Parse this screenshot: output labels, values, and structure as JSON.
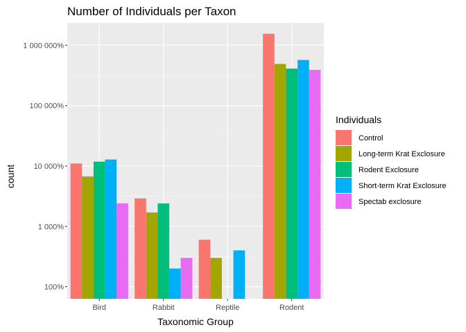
{
  "chart_data": {
    "type": "bar",
    "title": "Number of Individuals per Taxon",
    "xlabel": "Taxonomic Group",
    "ylabel": "count",
    "yscale": "log10",
    "ylim": [
      100,
      2000000
    ],
    "yticks": [
      100,
      1000,
      10000,
      100000,
      1000000
    ],
    "ytick_labels": [
      "100%",
      "1 000%",
      "10 000%",
      "100 000%",
      "1 000 000%"
    ],
    "grid": true,
    "categories": [
      "Bird",
      "Rabbit",
      "Reptile",
      "Rodent"
    ],
    "legend": {
      "title": "Individuals",
      "position": "right"
    },
    "series": [
      {
        "name": "Control",
        "color": "#F8766D",
        "values": [
          11000,
          2900,
          600,
          1550000
        ]
      },
      {
        "name": "Long-term Krat Exclosure",
        "color": "#A3A500",
        "values": [
          6700,
          1700,
          300,
          490000
        ]
      },
      {
        "name": "Rodent Exclosure",
        "color": "#00BF7D",
        "values": [
          11800,
          2400,
          null,
          410000
        ]
      },
      {
        "name": "Short-term Krat Exclosure",
        "color": "#00B0F6",
        "values": [
          12800,
          200,
          400,
          570000
        ]
      },
      {
        "name": "Spectab exclosure",
        "color": "#E76BF3",
        "values": [
          2400,
          300,
          null,
          390000
        ]
      }
    ]
  }
}
